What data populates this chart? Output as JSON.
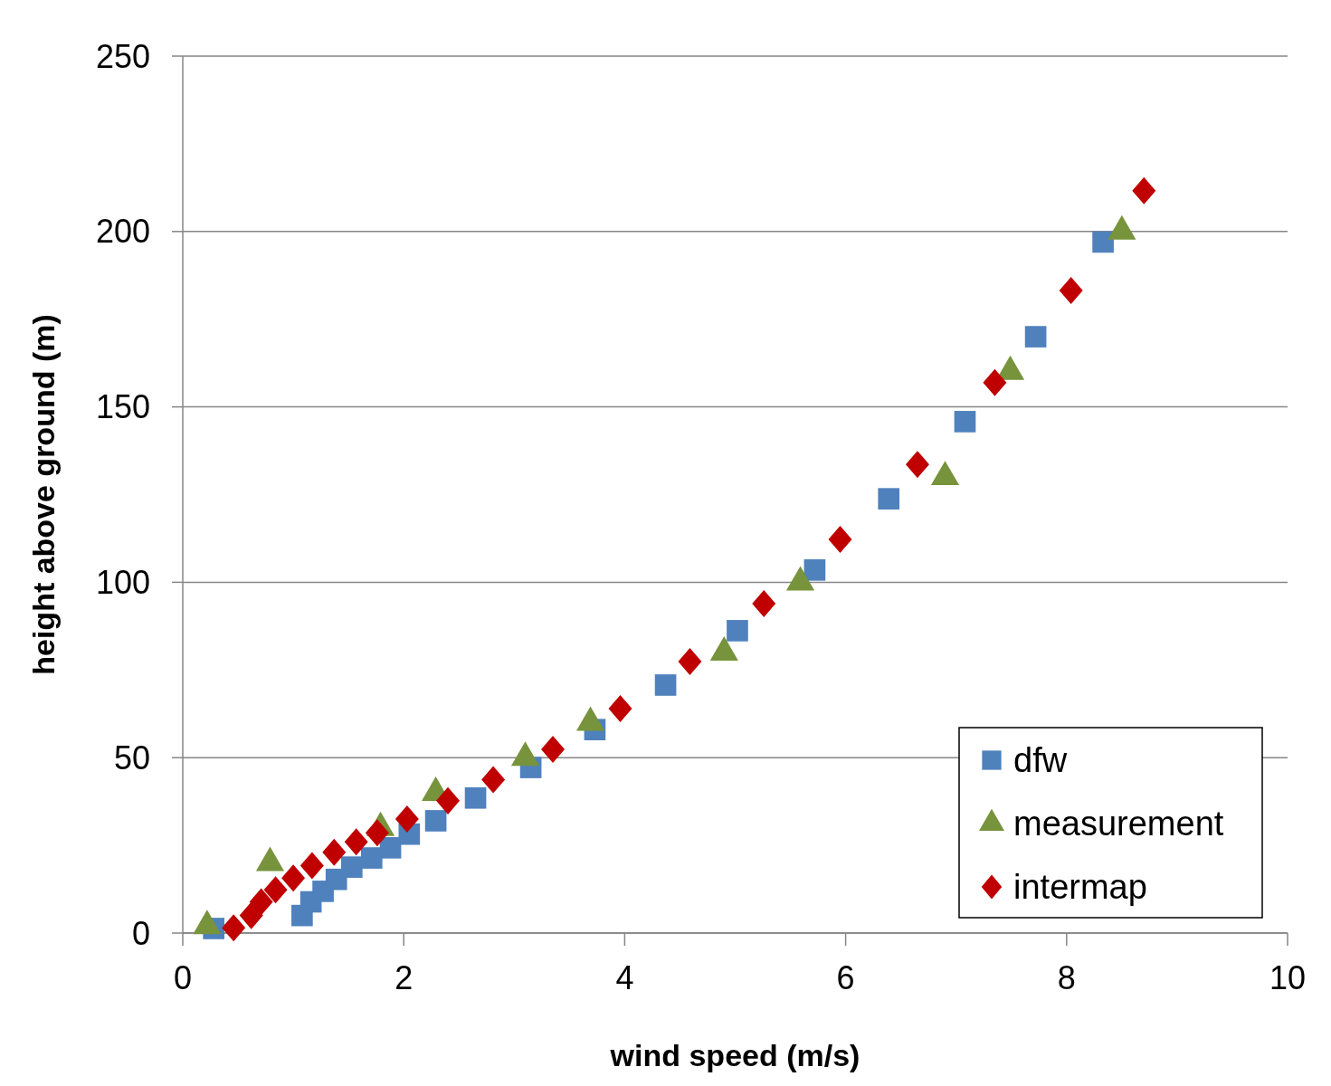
{
  "chart_data": {
    "type": "scatter",
    "xlabel": "wind speed (m/s)",
    "ylabel": "height above ground (m)",
    "xlim": [
      0,
      10
    ],
    "xticks": [
      0,
      2,
      4,
      6,
      8,
      10
    ],
    "ylim": [
      0,
      250
    ],
    "yticks": [
      0,
      50,
      100,
      150,
      200,
      250
    ],
    "grid": "y",
    "legend": "bottom right",
    "series": [
      {
        "name": "dfw",
        "color": "#4f81bd",
        "marker": "square",
        "x": [
          0.28,
          1.08,
          1.16,
          1.27,
          1.39,
          1.53,
          1.71,
          1.88,
          2.05,
          2.29,
          2.65,
          3.15,
          3.73,
          4.37,
          5.02,
          5.72,
          6.39,
          7.08,
          7.72,
          8.33
        ],
        "values": [
          1.3,
          5,
          8.9,
          11.9,
          15.3,
          18.8,
          21.4,
          24.3,
          28.2,
          32,
          38.5,
          47.2,
          58,
          70.7,
          86.2,
          103.5,
          123.8,
          145.8,
          170,
          197
        ]
      },
      {
        "name": "measurement",
        "color": "#77933c",
        "marker": "triangle",
        "x": [
          0.22,
          0.79,
          1.79,
          2.29,
          3.1,
          3.69,
          4.9,
          5.59,
          6.9,
          7.49,
          8.5
        ],
        "values": [
          2,
          20,
          30,
          40,
          50,
          60,
          80,
          100,
          130,
          160,
          200
        ]
      },
      {
        "name": "intermap",
        "color": "#c00000",
        "marker": "diamond",
        "x": [
          0.46,
          0.62,
          0.71,
          0.84,
          1.0,
          1.17,
          1.37,
          1.57,
          1.76,
          2.03,
          2.4,
          2.81,
          3.35,
          3.96,
          4.59,
          5.26,
          5.95,
          6.65,
          7.35,
          8.04,
          8.7
        ],
        "values": [
          1.5,
          5,
          8.9,
          12.3,
          15.7,
          19.2,
          23,
          26,
          28.6,
          32.5,
          37.7,
          43.7,
          52.4,
          64,
          77.4,
          93.9,
          112.2,
          133.6,
          156.9,
          183.2,
          211.6
        ]
      }
    ]
  }
}
